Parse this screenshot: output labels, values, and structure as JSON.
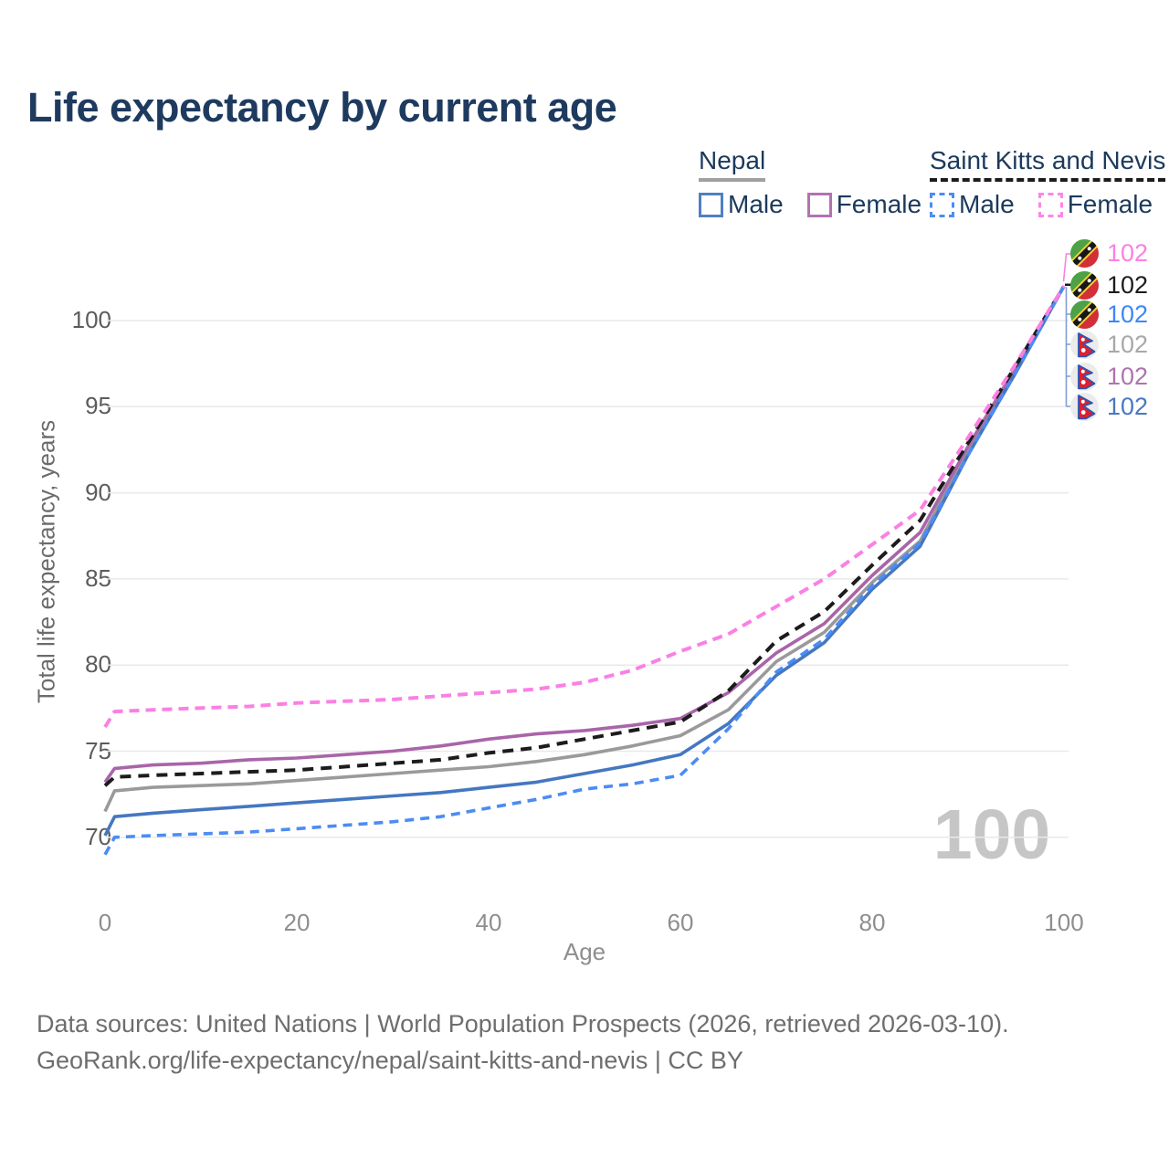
{
  "title": "Life expectancy by current age",
  "legend": {
    "groups": [
      {
        "id": "nepal",
        "label": "Nepal",
        "underline_style": "solid",
        "underline_color": "#a0a0a0",
        "items": [
          {
            "label": "Male",
            "color": "#4f7fc2",
            "dashed": false
          },
          {
            "label": "Female",
            "color": "#b273b0",
            "dashed": false
          }
        ]
      },
      {
        "id": "saint-kitts-and-nevis",
        "label": "Saint Kitts and Nevis",
        "underline_style": "dashed",
        "underline_color": "#1c1c1c",
        "items": [
          {
            "label": "Male",
            "color": "#4b8cf5",
            "dashed": true
          },
          {
            "label": "Female",
            "color": "#fc86e6",
            "dashed": true
          }
        ]
      }
    ]
  },
  "chart_data": {
    "type": "line",
    "title": "Life expectancy by current age",
    "xlabel": "Age",
    "ylabel": "Total life expectancy, years",
    "xticks": [
      0,
      20,
      40,
      60,
      80,
      100
    ],
    "yticks": [
      70,
      75,
      80,
      85,
      90,
      95,
      100
    ],
    "xlim": [
      0,
      100
    ],
    "ylim": [
      67,
      103
    ],
    "grid": "horizontal",
    "legend_position": "top-right",
    "x": [
      0,
      1,
      5,
      10,
      15,
      20,
      25,
      30,
      35,
      40,
      45,
      50,
      55,
      60,
      65,
      70,
      75,
      80,
      85,
      90,
      95,
      100
    ],
    "series": [
      {
        "key": "nepal_total",
        "country": "Nepal",
        "name": "Total",
        "color": "#9a9a9a",
        "style": "solid",
        "dash": null,
        "values": [
          71.5,
          72.7,
          72.9,
          73.0,
          73.1,
          73.3,
          73.5,
          73.7,
          73.9,
          74.1,
          74.4,
          74.8,
          75.3,
          75.9,
          77.4,
          80.2,
          81.9,
          84.8,
          87.2,
          92.5,
          97.2,
          102
        ]
      },
      {
        "key": "nepal_female",
        "country": "Nepal",
        "name": "Female",
        "color": "#a965a9",
        "style": "solid",
        "dash": null,
        "values": [
          73.2,
          74.0,
          74.2,
          74.3,
          74.5,
          74.6,
          74.8,
          75.0,
          75.3,
          75.7,
          76.0,
          76.2,
          76.5,
          76.9,
          78.4,
          80.7,
          82.4,
          85.2,
          87.7,
          92.7,
          97.3,
          102
        ]
      },
      {
        "key": "nepal_male",
        "country": "Nepal",
        "name": "Male",
        "color": "#4577c0",
        "style": "solid",
        "dash": null,
        "values": [
          70.1,
          71.2,
          71.4,
          71.6,
          71.8,
          72.0,
          72.2,
          72.4,
          72.6,
          72.9,
          73.2,
          73.7,
          74.2,
          74.8,
          76.6,
          79.4,
          81.3,
          84.4,
          86.9,
          92.2,
          97.0,
          102
        ]
      },
      {
        "key": "skn_total",
        "country": "Saint Kitts and Nevis",
        "name": "Total",
        "color": "#1c1c1c",
        "style": "dashed",
        "dash": "12,8",
        "values": [
          73.0,
          73.5,
          73.6,
          73.7,
          73.8,
          73.9,
          74.1,
          74.3,
          74.5,
          74.9,
          75.2,
          75.7,
          76.2,
          76.7,
          78.5,
          81.4,
          83.1,
          85.8,
          88.4,
          92.9,
          97.4,
          102
        ]
      },
      {
        "key": "skn_male",
        "country": "Saint Kitts and Nevis",
        "name": "Male",
        "color": "#4b8cf5",
        "style": "dashed",
        "dash": "10,7",
        "values": [
          69.0,
          70.0,
          70.1,
          70.2,
          70.3,
          70.5,
          70.7,
          70.9,
          71.2,
          71.7,
          72.2,
          72.8,
          73.1,
          73.6,
          76.3,
          79.6,
          81.5,
          84.6,
          87.1,
          92.2,
          97.0,
          102
        ]
      },
      {
        "key": "skn_female",
        "country": "Saint Kitts and Nevis",
        "name": "Female",
        "color": "#fb80e3",
        "style": "dashed",
        "dash": "11,7",
        "values": [
          76.4,
          77.3,
          77.4,
          77.5,
          77.6,
          77.8,
          77.9,
          78.0,
          78.2,
          78.4,
          78.6,
          79.0,
          79.7,
          80.8,
          81.8,
          83.4,
          85.0,
          87.0,
          89.0,
          93.2,
          97.5,
          102
        ]
      }
    ]
  },
  "axes": {
    "x": {
      "label": "Age",
      "ticks": [
        "0",
        "20",
        "40",
        "60",
        "80",
        "100"
      ]
    },
    "y": {
      "label": "Total life expectancy, years",
      "ticks": [
        "70",
        "75",
        "80",
        "85",
        "90",
        "95",
        "100"
      ]
    }
  },
  "end_labels": [
    {
      "value": "102",
      "series_key": "skn_female",
      "flag": "saint-kitts-and-nevis",
      "color": "#fb80e3"
    },
    {
      "value": "102",
      "series_key": "skn_total",
      "flag": "saint-kitts-and-nevis",
      "color": "#1c1c1c"
    },
    {
      "value": "102",
      "series_key": "skn_male",
      "flag": "saint-kitts-and-nevis",
      "color": "#3d87f5"
    },
    {
      "value": "102",
      "series_key": "nepal_total",
      "flag": "nepal",
      "color": "#a8a8a8"
    },
    {
      "value": "102",
      "series_key": "nepal_female",
      "flag": "nepal",
      "color": "#ae74ae"
    },
    {
      "value": "102",
      "series_key": "nepal_male",
      "flag": "nepal",
      "color": "#4a78c2"
    }
  ],
  "age_indicator": {
    "text": "100",
    "color": "#c6c6c6"
  },
  "footer": {
    "line1": "Data sources: United Nations | World Population Prospects (2026, retrieved 2026-03-10).",
    "line2": "GeoRank.org/life-expectancy/nepal/saint-kitts-and-nevis | CC BY"
  }
}
